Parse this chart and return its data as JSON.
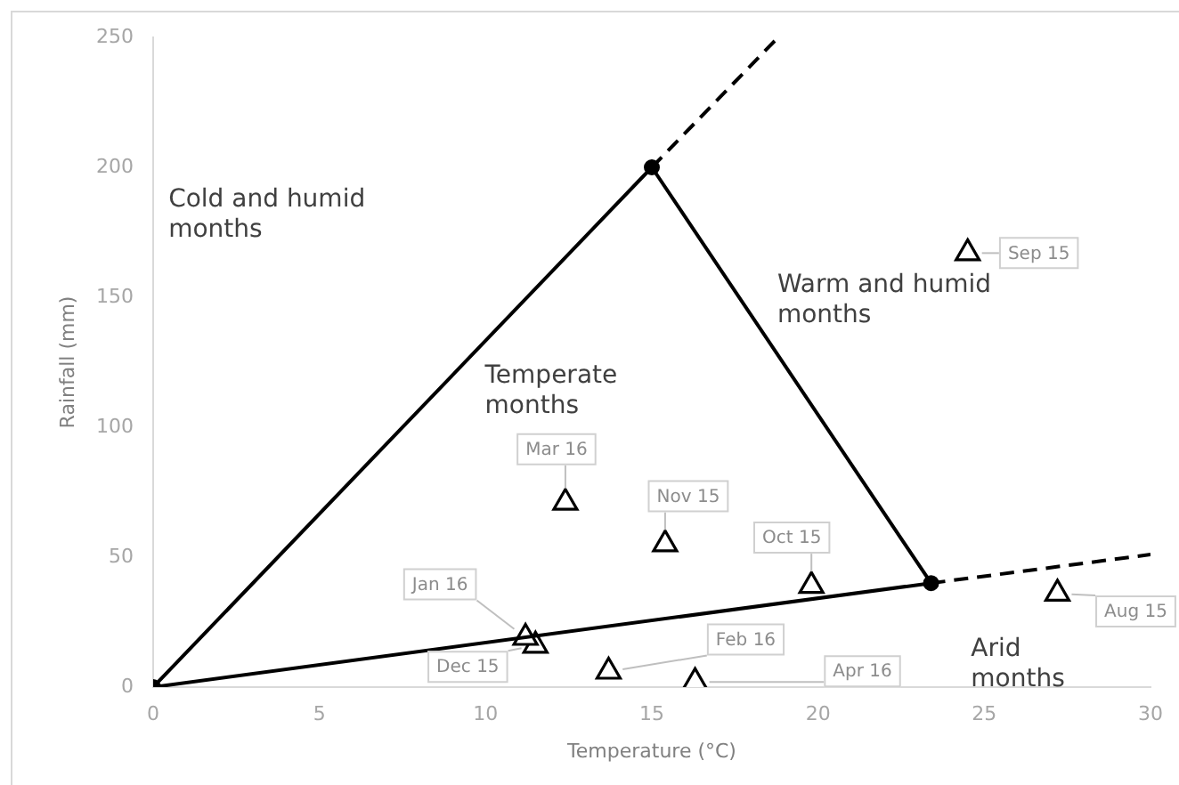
{
  "chart_data": {
    "type": "scatter",
    "xlabel": "Temperature (°C)",
    "ylabel": "Rainfall (mm)",
    "xlim": [
      0,
      30
    ],
    "xticks": [
      0,
      5,
      10,
      15,
      20,
      25,
      30
    ],
    "ylim": [
      0,
      250
    ],
    "yticks": [
      0,
      50,
      100,
      150,
      200,
      250
    ],
    "series": [
      {
        "type": "line",
        "color": "#000000",
        "x": [
          0,
          15,
          23.4
        ],
        "values": [
          0,
          200,
          40
        ],
        "marker": "circle",
        "line_style": "solid"
      },
      {
        "type": "line",
        "color": "#000000",
        "x": [
          0,
          23.4
        ],
        "values": [
          0,
          40
        ],
        "marker": "none",
        "line_style": "solid"
      },
      {
        "type": "line",
        "color": "#000000",
        "x": [
          15,
          18.8
        ],
        "values": [
          200,
          250
        ],
        "marker": "none",
        "line_style": "dashed"
      },
      {
        "type": "line",
        "color": "#000000",
        "x": [
          23.4,
          30
        ],
        "values": [
          40,
          51
        ],
        "marker": "none",
        "line_style": "dashed"
      },
      {
        "type": "scatter",
        "color": "#000000",
        "marker": "triangle",
        "x": [
          27.2,
          24.5,
          19.8,
          15.4,
          11.5,
          11.2,
          13.7,
          12.4,
          16.3
        ],
        "values": [
          36,
          167,
          39,
          55,
          16,
          19,
          6,
          71,
          2
        ],
        "value_labels": [
          "Aug 15",
          "Sep 15",
          "Oct 15",
          "Nov 15",
          "Dec 15",
          "Jan 16",
          "Feb 16",
          "Mar 16",
          "Apr 16"
        ]
      }
    ],
    "annotations": [
      "Cold and humid\nmonths",
      "Temperate\nmonths",
      "Warm and humid\nmonths",
      "Arid\nmonths"
    ]
  }
}
